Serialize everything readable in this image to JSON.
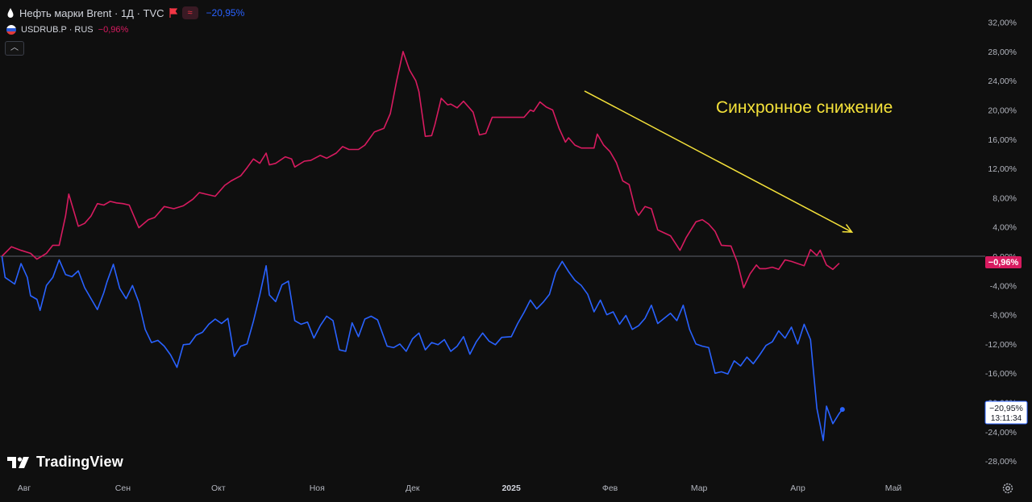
{
  "header": {
    "brent_label": "Нефть марки Brent · 1Д · TVC",
    "brent_change": "−20,95%",
    "usdrub_label": "USDRUB.P · RUS",
    "usdrub_change": "−0,96%"
  },
  "annotation": {
    "text": "Синхронное снижение",
    "color": "#f5e23a"
  },
  "price_labels": {
    "usdrub_value": "−0,96%",
    "brent_value": "−20,95%",
    "brent_time": "13:11:34"
  },
  "colors": {
    "usdrub": "#d81b60",
    "brent": "#2962ff",
    "background": "#0f0f0f",
    "annotation": "#f5e23a"
  },
  "icons": {
    "brent": "oil-drop-icon",
    "usdrub": "russia-flag-icon",
    "flag": "flag-icon",
    "settings": "gear-icon"
  },
  "logo_text": "TradingView",
  "chart_data": {
    "type": "line",
    "x_tick_labels": [
      "Авг",
      "Сен",
      "Окт",
      "Ноя",
      "Дек",
      "2025",
      "Фев",
      "Мар",
      "Апр",
      "Май"
    ],
    "x_tick_dates": [
      "2024-08-01",
      "2024-09-01",
      "2024-10-01",
      "2024-11-01",
      "2024-12-01",
      "2025-01-01",
      "2025-02-01",
      "2025-03-01",
      "2025-04-01",
      "2025-05-01"
    ],
    "xlim": [
      "2024-07-25",
      "2025-05-15"
    ],
    "y_tick_labels": [
      "32,00%",
      "28,00%",
      "24,00%",
      "20,00%",
      "16,00%",
      "12,00%",
      "8,00%",
      "4,00%",
      "0,00%",
      "-4,00%",
      "-8,00%",
      "-12,00%",
      "-16,00%",
      "-20,00%",
      "-24,00%",
      "-28,00%"
    ],
    "ylim": [
      -29.5,
      33
    ],
    "zero_line": 0,
    "series": [
      {
        "name": "USDRUB.P · RUS",
        "color": "#d81b60",
        "points": [
          [
            "2024-07-25",
            0.0
          ],
          [
            "2024-07-28",
            1.3
          ],
          [
            "2024-07-31",
            0.8
          ],
          [
            "2024-08-03",
            0.4
          ],
          [
            "2024-08-05",
            -0.4
          ],
          [
            "2024-08-08",
            0.4
          ],
          [
            "2024-08-10",
            1.5
          ],
          [
            "2024-08-12",
            1.5
          ],
          [
            "2024-08-14",
            5.5
          ],
          [
            "2024-08-15",
            8.5
          ],
          [
            "2024-08-18",
            4.1
          ],
          [
            "2024-08-20",
            4.5
          ],
          [
            "2024-08-22",
            5.5
          ],
          [
            "2024-08-24",
            7.2
          ],
          [
            "2024-08-26",
            7.0
          ],
          [
            "2024-08-28",
            7.5
          ],
          [
            "2024-08-30",
            7.3
          ],
          [
            "2024-09-01",
            7.2
          ],
          [
            "2024-09-03",
            7.0
          ],
          [
            "2024-09-06",
            3.9
          ],
          [
            "2024-09-09",
            5.0
          ],
          [
            "2024-09-11",
            5.3
          ],
          [
            "2024-09-14",
            6.8
          ],
          [
            "2024-09-17",
            6.5
          ],
          [
            "2024-09-20",
            6.9
          ],
          [
            "2024-09-23",
            7.8
          ],
          [
            "2024-09-25",
            8.7
          ],
          [
            "2024-09-27",
            8.5
          ],
          [
            "2024-09-30",
            8.2
          ],
          [
            "2024-10-03",
            9.7
          ],
          [
            "2024-10-05",
            10.3
          ],
          [
            "2024-10-08",
            11.0
          ],
          [
            "2024-10-10",
            12.1
          ],
          [
            "2024-10-12",
            13.3
          ],
          [
            "2024-10-14",
            12.7
          ],
          [
            "2024-10-16",
            14.1
          ],
          [
            "2024-10-17",
            12.5
          ],
          [
            "2024-10-19",
            12.7
          ],
          [
            "2024-10-22",
            13.6
          ],
          [
            "2024-10-24",
            13.3
          ],
          [
            "2024-10-25",
            12.2
          ],
          [
            "2024-10-28",
            13.0
          ],
          [
            "2024-10-30",
            13.1
          ],
          [
            "2024-11-02",
            13.8
          ],
          [
            "2024-11-04",
            13.4
          ],
          [
            "2024-11-07",
            14.1
          ],
          [
            "2024-11-09",
            15.0
          ],
          [
            "2024-11-11",
            14.6
          ],
          [
            "2024-11-14",
            14.6
          ],
          [
            "2024-11-16",
            15.2
          ],
          [
            "2024-11-19",
            17.0
          ],
          [
            "2024-11-22",
            17.5
          ],
          [
            "2024-11-24",
            19.5
          ],
          [
            "2024-11-26",
            24.0
          ],
          [
            "2024-11-28",
            28.0
          ],
          [
            "2024-11-30",
            25.5
          ],
          [
            "2024-12-02",
            24.0
          ],
          [
            "2024-12-03",
            22.5
          ],
          [
            "2024-12-05",
            16.4
          ],
          [
            "2024-12-07",
            16.5
          ],
          [
            "2024-12-08",
            18.0
          ],
          [
            "2024-12-10",
            21.6
          ],
          [
            "2024-12-12",
            20.7
          ],
          [
            "2024-12-13",
            20.8
          ],
          [
            "2024-12-15",
            20.3
          ],
          [
            "2024-12-17",
            21.2
          ],
          [
            "2024-12-20",
            19.7
          ],
          [
            "2024-12-22",
            16.6
          ],
          [
            "2024-12-24",
            16.8
          ],
          [
            "2024-12-26",
            19.0
          ],
          [
            "2024-12-28",
            19.0
          ],
          [
            "2025-01-02",
            19.0
          ],
          [
            "2025-01-05",
            19.0
          ],
          [
            "2025-01-07",
            20.0
          ],
          [
            "2025-01-08",
            19.8
          ],
          [
            "2025-01-10",
            21.1
          ],
          [
            "2025-01-12",
            20.4
          ],
          [
            "2025-01-14",
            20.0
          ],
          [
            "2025-01-16",
            17.5
          ],
          [
            "2025-01-18",
            15.6
          ],
          [
            "2025-01-19",
            16.2
          ],
          [
            "2025-01-21",
            15.2
          ],
          [
            "2025-01-23",
            14.8
          ],
          [
            "2025-01-25",
            14.8
          ],
          [
            "2025-01-27",
            14.8
          ],
          [
            "2025-01-28",
            16.7
          ],
          [
            "2025-01-30",
            15.2
          ],
          [
            "2025-02-01",
            14.3
          ],
          [
            "2025-02-03",
            12.8
          ],
          [
            "2025-02-05",
            10.3
          ],
          [
            "2025-02-07",
            9.8
          ],
          [
            "2025-02-09",
            6.3
          ],
          [
            "2025-02-10",
            5.6
          ],
          [
            "2025-02-12",
            6.8
          ],
          [
            "2025-02-14",
            6.5
          ],
          [
            "2025-02-16",
            3.6
          ],
          [
            "2025-02-18",
            3.2
          ],
          [
            "2025-02-20",
            2.8
          ],
          [
            "2025-02-23",
            0.8
          ],
          [
            "2025-02-25",
            2.6
          ],
          [
            "2025-02-27",
            4.0
          ],
          [
            "2025-02-28",
            4.7
          ],
          [
            "2025-03-02",
            5.0
          ],
          [
            "2025-03-04",
            4.4
          ],
          [
            "2025-03-06",
            3.4
          ],
          [
            "2025-03-08",
            1.5
          ],
          [
            "2025-03-11",
            1.4
          ],
          [
            "2025-03-13",
            -0.8
          ],
          [
            "2025-03-15",
            -4.3
          ],
          [
            "2025-03-17",
            -2.4
          ],
          [
            "2025-03-19",
            -1.2
          ],
          [
            "2025-03-20",
            -1.7
          ],
          [
            "2025-03-22",
            -1.7
          ],
          [
            "2025-03-24",
            -1.5
          ],
          [
            "2025-03-26",
            -1.8
          ],
          [
            "2025-03-28",
            -0.5
          ],
          [
            "2025-03-30",
            -0.7
          ],
          [
            "2025-04-01",
            -1.0
          ],
          [
            "2025-04-03",
            -1.3
          ],
          [
            "2025-04-05",
            0.9
          ],
          [
            "2025-04-07",
            0.1
          ],
          [
            "2025-04-08",
            0.8
          ],
          [
            "2025-04-10",
            -1.2
          ],
          [
            "2025-04-12",
            -1.8
          ],
          [
            "2025-04-14",
            -0.96
          ]
        ]
      },
      {
        "name": "Нефть марки Brent · 1Д · TVC",
        "color": "#2962ff",
        "points": [
          [
            "2024-07-25",
            0.0
          ],
          [
            "2024-07-26",
            -2.9
          ],
          [
            "2024-07-29",
            -3.8
          ],
          [
            "2024-07-31",
            -1.0
          ],
          [
            "2024-08-02",
            -2.9
          ],
          [
            "2024-08-03",
            -5.4
          ],
          [
            "2024-08-05",
            -5.9
          ],
          [
            "2024-08-06",
            -7.4
          ],
          [
            "2024-08-08",
            -4.0
          ],
          [
            "2024-08-10",
            -2.9
          ],
          [
            "2024-08-12",
            -0.5
          ],
          [
            "2024-08-14",
            -2.5
          ],
          [
            "2024-08-16",
            -2.8
          ],
          [
            "2024-08-18",
            -2.0
          ],
          [
            "2024-08-20",
            -4.3
          ],
          [
            "2024-08-22",
            -5.8
          ],
          [
            "2024-08-24",
            -7.3
          ],
          [
            "2024-08-26",
            -5.0
          ],
          [
            "2024-08-27",
            -3.5
          ],
          [
            "2024-08-29",
            -1.1
          ],
          [
            "2024-08-31",
            -4.4
          ],
          [
            "2024-09-02",
            -5.8
          ],
          [
            "2024-09-04",
            -4.0
          ],
          [
            "2024-09-06",
            -6.3
          ],
          [
            "2024-09-08",
            -10.0
          ],
          [
            "2024-09-10",
            -11.8
          ],
          [
            "2024-09-12",
            -11.5
          ],
          [
            "2024-09-14",
            -12.3
          ],
          [
            "2024-09-16",
            -13.5
          ],
          [
            "2024-09-18",
            -15.2
          ],
          [
            "2024-09-20",
            -12.1
          ],
          [
            "2024-09-22",
            -12.0
          ],
          [
            "2024-09-24",
            -10.8
          ],
          [
            "2024-09-26",
            -10.4
          ],
          [
            "2024-09-28",
            -9.3
          ],
          [
            "2024-09-30",
            -8.6
          ],
          [
            "2024-10-02",
            -9.2
          ],
          [
            "2024-10-04",
            -8.5
          ],
          [
            "2024-10-06",
            -13.7
          ],
          [
            "2024-10-08",
            -12.3
          ],
          [
            "2024-10-10",
            -12.0
          ],
          [
            "2024-10-12",
            -8.9
          ],
          [
            "2024-10-14",
            -5.3
          ],
          [
            "2024-10-16",
            -1.3
          ],
          [
            "2024-10-17",
            -5.3
          ],
          [
            "2024-10-19",
            -6.2
          ],
          [
            "2024-10-21",
            -3.9
          ],
          [
            "2024-10-23",
            -3.4
          ],
          [
            "2024-10-25",
            -8.8
          ],
          [
            "2024-10-27",
            -9.3
          ],
          [
            "2024-10-29",
            -9.0
          ],
          [
            "2024-10-31",
            -11.2
          ],
          [
            "2024-11-02",
            -9.5
          ],
          [
            "2024-11-04",
            -8.2
          ],
          [
            "2024-11-06",
            -8.8
          ],
          [
            "2024-11-08",
            -12.8
          ],
          [
            "2024-11-10",
            -13.0
          ],
          [
            "2024-11-12",
            -9.1
          ],
          [
            "2024-11-14",
            -11.0
          ],
          [
            "2024-11-16",
            -8.6
          ],
          [
            "2024-11-18",
            -8.2
          ],
          [
            "2024-11-20",
            -8.7
          ],
          [
            "2024-11-23",
            -12.3
          ],
          [
            "2024-11-25",
            -12.5
          ],
          [
            "2024-11-27",
            -12.0
          ],
          [
            "2024-11-29",
            -13.0
          ],
          [
            "2024-12-01",
            -11.3
          ],
          [
            "2024-12-03",
            -10.5
          ],
          [
            "2024-12-05",
            -12.8
          ],
          [
            "2024-12-07",
            -11.8
          ],
          [
            "2024-12-09",
            -12.1
          ],
          [
            "2024-12-11",
            -11.4
          ],
          [
            "2024-12-13",
            -13.0
          ],
          [
            "2024-12-15",
            -12.3
          ],
          [
            "2024-12-17",
            -11.0
          ],
          [
            "2024-12-19",
            -13.4
          ],
          [
            "2024-12-21",
            -11.7
          ],
          [
            "2024-12-23",
            -10.5
          ],
          [
            "2024-12-25",
            -11.6
          ],
          [
            "2024-12-27",
            -12.1
          ],
          [
            "2024-12-29",
            -11.1
          ],
          [
            "2025-01-01",
            -11.0
          ],
          [
            "2025-01-03",
            -9.2
          ],
          [
            "2025-01-05",
            -7.7
          ],
          [
            "2025-01-07",
            -6.0
          ],
          [
            "2025-01-09",
            -7.2
          ],
          [
            "2025-01-11",
            -6.3
          ],
          [
            "2025-01-13",
            -5.2
          ],
          [
            "2025-01-15",
            -2.2
          ],
          [
            "2025-01-17",
            -0.7
          ],
          [
            "2025-01-19",
            -2.1
          ],
          [
            "2025-01-21",
            -3.3
          ],
          [
            "2025-01-23",
            -4.0
          ],
          [
            "2025-01-25",
            -5.2
          ],
          [
            "2025-01-27",
            -7.6
          ],
          [
            "2025-01-29",
            -6.0
          ],
          [
            "2025-01-31",
            -8.0
          ],
          [
            "2025-02-02",
            -7.6
          ],
          [
            "2025-02-04",
            -9.3
          ],
          [
            "2025-02-06",
            -8.1
          ],
          [
            "2025-02-08",
            -10.0
          ],
          [
            "2025-02-10",
            -9.5
          ],
          [
            "2025-02-12",
            -8.5
          ],
          [
            "2025-02-14",
            -6.7
          ],
          [
            "2025-02-16",
            -9.2
          ],
          [
            "2025-02-18",
            -8.5
          ],
          [
            "2025-02-20",
            -7.8
          ],
          [
            "2025-02-22",
            -8.8
          ],
          [
            "2025-02-24",
            -6.7
          ],
          [
            "2025-02-26",
            -10.0
          ],
          [
            "2025-02-28",
            -12.0
          ],
          [
            "2025-03-02",
            -12.3
          ],
          [
            "2025-03-04",
            -12.5
          ],
          [
            "2025-03-06",
            -16.0
          ],
          [
            "2025-03-08",
            -15.8
          ],
          [
            "2025-03-10",
            -16.1
          ],
          [
            "2025-03-12",
            -14.3
          ],
          [
            "2025-03-14",
            -15.0
          ],
          [
            "2025-03-16",
            -13.8
          ],
          [
            "2025-03-18",
            -14.7
          ],
          [
            "2025-03-20",
            -13.5
          ],
          [
            "2025-03-22",
            -12.2
          ],
          [
            "2025-03-24",
            -11.7
          ],
          [
            "2025-03-26",
            -10.2
          ],
          [
            "2025-03-28",
            -11.2
          ],
          [
            "2025-03-30",
            -9.7
          ],
          [
            "2025-04-01",
            -12.0
          ],
          [
            "2025-04-03",
            -9.3
          ],
          [
            "2025-04-05",
            -11.4
          ],
          [
            "2025-04-07",
            -20.8
          ],
          [
            "2025-04-09",
            -25.2
          ],
          [
            "2025-04-10",
            -20.5
          ],
          [
            "2025-04-12",
            -22.9
          ],
          [
            "2025-04-14",
            -21.5
          ],
          [
            "2025-04-15",
            -20.95
          ]
        ]
      }
    ],
    "annotation_arrow": {
      "from": [
        "2025-01-24",
        22.6
      ],
      "to": [
        "2025-04-18",
        3.3
      ]
    }
  }
}
